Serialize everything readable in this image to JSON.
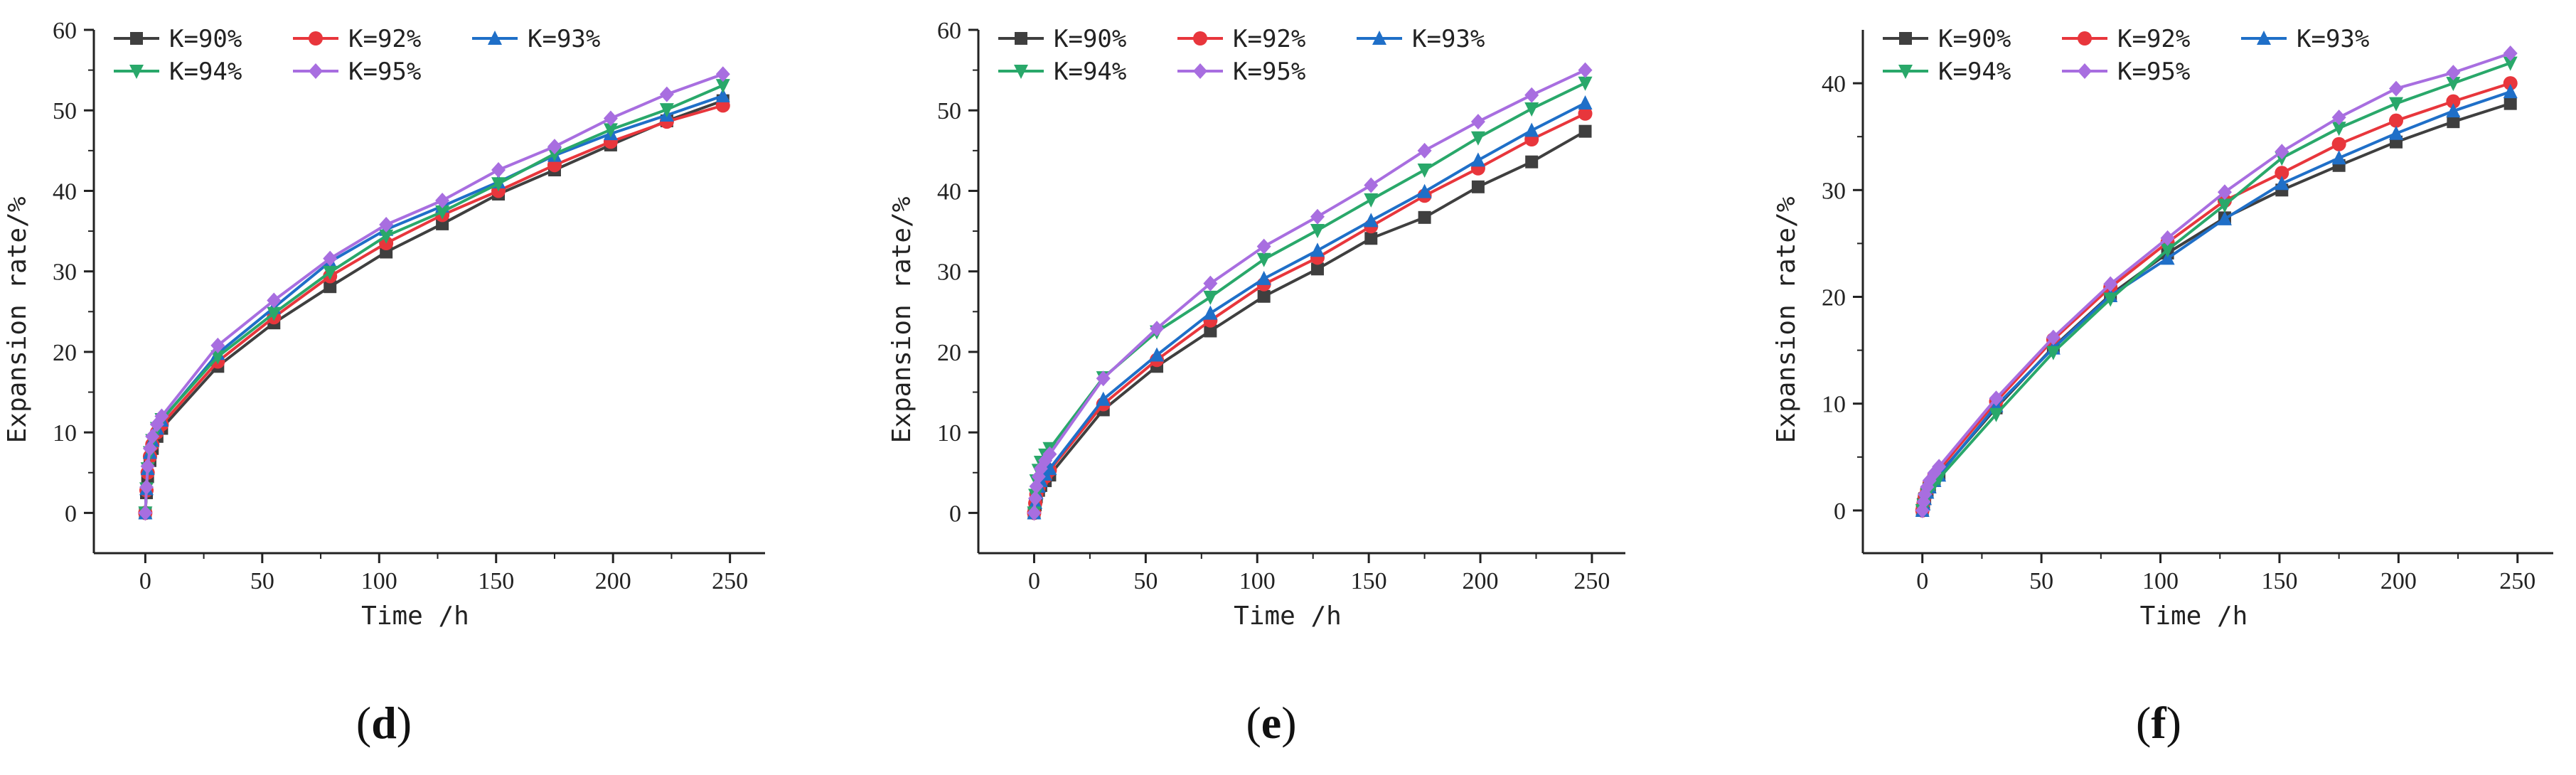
{
  "figure": {
    "series_styles": [
      {
        "name": "K=90%",
        "color": "#3f3f3f",
        "marker": "square"
      },
      {
        "name": "K=92%",
        "color": "#e8363c",
        "marker": "circle"
      },
      {
        "name": "K=93%",
        "color": "#1f6fc8",
        "marker": "triangle-up"
      },
      {
        "name": "K=94%",
        "color": "#29a86a",
        "marker": "triangle-down"
      },
      {
        "name": "K=95%",
        "color": "#a86ee0",
        "marker": "diamond"
      }
    ]
  },
  "chart_data": [
    {
      "type": "line",
      "panel_label": "d",
      "xlabel": "Time /h",
      "ylabel": "Expansion rate/%",
      "xlim": [
        -22,
        265
      ],
      "ylim": [
        -5,
        60
      ],
      "xticks": [
        0,
        50,
        100,
        150,
        200,
        250
      ],
      "yticks": [
        0,
        10,
        20,
        30,
        40,
        50,
        60
      ],
      "legend_position": "top-left",
      "x": [
        0,
        0.5,
        1,
        2,
        3,
        5,
        7,
        31,
        55,
        79,
        103,
        127,
        151,
        175,
        199,
        223,
        247
      ],
      "series": [
        {
          "name": "K=90%",
          "values": [
            0,
            2.5,
            4.5,
            6.5,
            8,
            9.5,
            10.5,
            18.2,
            23.6,
            28.1,
            32.4,
            35.9,
            39.6,
            42.6,
            45.7,
            48.7,
            51.2
          ]
        },
        {
          "name": "K=92%",
          "values": [
            0,
            2.8,
            5,
            7,
            8.5,
            10,
            11,
            18.8,
            24.3,
            29.4,
            33.5,
            37,
            40,
            43.2,
            46.1,
            48.6,
            50.6
          ]
        },
        {
          "name": "K=93%",
          "values": [
            0,
            3,
            5.5,
            7.5,
            9,
            10.5,
            11.5,
            19.8,
            25.5,
            31.2,
            35.2,
            38.1,
            41.1,
            44.4,
            47.1,
            49.4,
            51.8
          ]
        },
        {
          "name": "K=94%",
          "values": [
            0,
            3,
            5.5,
            7.5,
            9,
            10.5,
            11.6,
            19.4,
            24.8,
            29.9,
            34.4,
            37.4,
            40.9,
            44.6,
            47.6,
            50.1,
            53.1
          ]
        },
        {
          "name": "K=95%",
          "values": [
            0,
            3.2,
            5.8,
            8,
            9.5,
            11,
            12,
            20.8,
            26.4,
            31.6,
            35.8,
            38.8,
            42.6,
            45.5,
            49,
            52,
            54.5
          ]
        }
      ]
    },
    {
      "type": "line",
      "panel_label": "e",
      "xlabel": "Time /h",
      "ylabel": "Expansion rate/%",
      "xlim": [
        -25,
        265
      ],
      "ylim": [
        -5,
        60
      ],
      "xticks": [
        0,
        50,
        100,
        150,
        200,
        250
      ],
      "yticks": [
        0,
        10,
        20,
        30,
        40,
        50,
        60
      ],
      "legend_position": "top-left",
      "x": [
        0,
        0.5,
        1,
        2,
        3,
        5,
        7,
        31,
        55,
        79,
        103,
        127,
        151,
        175,
        199,
        223,
        247
      ],
      "series": [
        {
          "name": "K=90%",
          "values": [
            0,
            1,
            2,
            2.8,
            3.4,
            4,
            4.7,
            12.8,
            18.2,
            22.6,
            26.9,
            30.3,
            34.1,
            36.7,
            40.5,
            43.6,
            47.4
          ]
        },
        {
          "name": "K=92%",
          "values": [
            0,
            1.2,
            2.3,
            3.1,
            3.8,
            4.5,
            5.3,
            13.5,
            19,
            23.9,
            28.4,
            31.7,
            35.6,
            39.4,
            42.8,
            46.4,
            49.6
          ]
        },
        {
          "name": "K=93%",
          "values": [
            0,
            1.3,
            2.5,
            3.3,
            4,
            4.8,
            5.5,
            14.1,
            19.6,
            24.8,
            29.1,
            32.6,
            36.3,
            39.9,
            43.8,
            47.5,
            50.9
          ]
        },
        {
          "name": "K=94%",
          "values": [
            0,
            2.2,
            4,
            5.3,
            6.3,
            7.2,
            8,
            16.8,
            22.5,
            26.8,
            31.5,
            35.1,
            38.9,
            42.6,
            46.6,
            50.2,
            53.4
          ]
        },
        {
          "name": "K=95%",
          "values": [
            0,
            1.8,
            3.3,
            4.5,
            5.5,
            6.5,
            7.3,
            16.7,
            22.9,
            28.5,
            33.1,
            36.8,
            40.7,
            45,
            48.6,
            51.9,
            55
          ]
        }
      ]
    },
    {
      "type": "line",
      "panel_label": "f",
      "xlabel": "Time /h",
      "ylabel": "Expansion rate/%",
      "xlim": [
        -25,
        265
      ],
      "ylim": [
        -4,
        45
      ],
      "xticks": [
        0,
        50,
        100,
        150,
        200,
        250
      ],
      "yticks": [
        0,
        10,
        20,
        30,
        40
      ],
      "legend_position": "top-left",
      "x": [
        0,
        0.5,
        1,
        2,
        3,
        5,
        7,
        31,
        55,
        79,
        103,
        127,
        151,
        175,
        199,
        223,
        247
      ],
      "series": [
        {
          "name": "K=90%",
          "values": [
            0,
            0.6,
            1.1,
            1.7,
            2.2,
            2.8,
            3.4,
            9.6,
            15.3,
            20.2,
            24.1,
            27.4,
            30,
            32.3,
            34.5,
            36.4,
            38.1
          ]
        },
        {
          "name": "K=92%",
          "values": [
            0,
            0.7,
            1.3,
            1.9,
            2.5,
            3.2,
            3.8,
            10.2,
            16,
            20.9,
            25.1,
            29,
            31.6,
            34.3,
            36.5,
            38.3,
            40
          ]
        },
        {
          "name": "K=93%",
          "values": [
            0,
            0.6,
            1.1,
            1.7,
            2.2,
            2.8,
            3.3,
            9.8,
            15.2,
            20.1,
            23.6,
            27.3,
            30.6,
            33,
            35.3,
            37.4,
            39.2
          ]
        },
        {
          "name": "K=94%",
          "values": [
            0,
            0.5,
            1,
            1.5,
            2,
            2.5,
            3,
            9,
            14.8,
            19.8,
            24.4,
            28.6,
            33,
            35.8,
            38.1,
            40,
            41.9
          ]
        },
        {
          "name": "K=95%",
          "values": [
            0,
            0.8,
            1.5,
            2.2,
            2.8,
            3.5,
            4.1,
            10.5,
            16.2,
            21.2,
            25.5,
            29.8,
            33.6,
            36.8,
            39.5,
            41,
            42.8
          ]
        }
      ]
    }
  ]
}
